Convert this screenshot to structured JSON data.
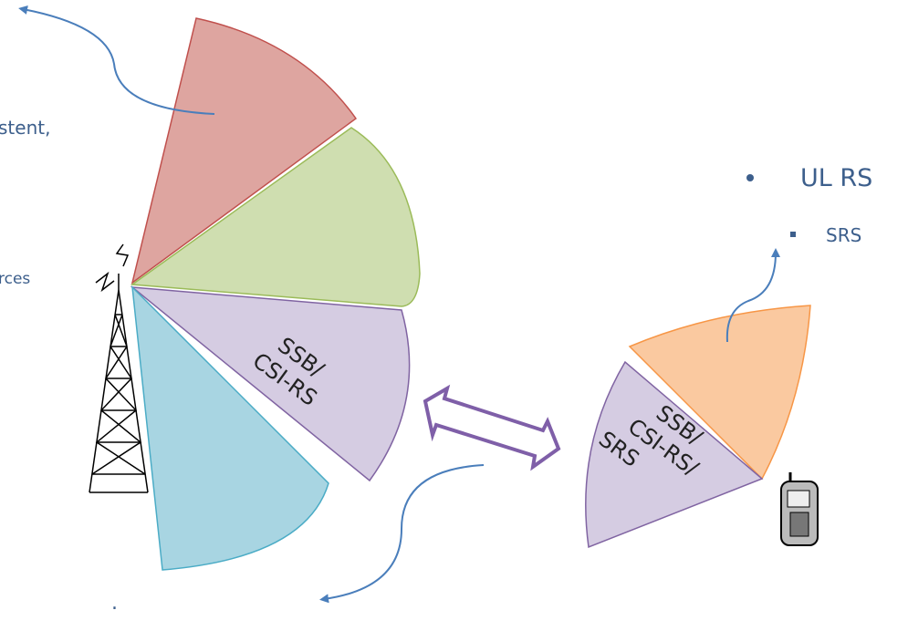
{
  "left_notes": {
    "line_1": "stent,",
    "line_2": "rces",
    "bottom_mark": "."
  },
  "gnb_beam": {
    "label_lines": [
      "SSB/",
      "CSI-RS"
    ]
  },
  "ue_beam": {
    "label_lines": [
      "SSB/",
      "CSI-RS/",
      "SRS"
    ]
  },
  "right_list": {
    "item": "UL RS",
    "sub_item": "SRS"
  }
}
